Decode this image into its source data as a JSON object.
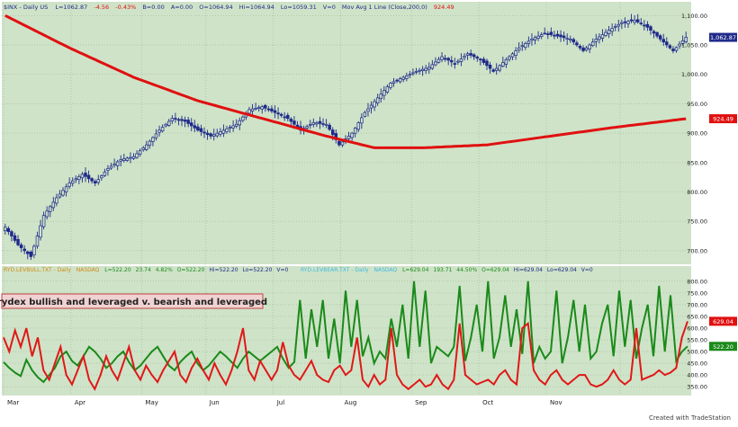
{
  "top_panel": {
    "header": {
      "symbol": "$INX - Daily US",
      "last": "L=1062.87",
      "change": "-4.56",
      "pct": "-0.43%",
      "b": "B=0.00",
      "a": "A=0.00",
      "open": "O=1064.94",
      "high": "Hi=1064.94",
      "low": "Lo=1059.31",
      "vol": "V=0",
      "ma_label": "Mov Avg 1 Line (Close,200,0)",
      "ma_value": "924.49"
    },
    "price_badge": "1,062.87",
    "ma_badge": "924.49"
  },
  "bottom_panel": {
    "header": {
      "bull_symbol": "RYD.LEVBULL.TXT - Daily",
      "bull_exchange": "NASDAQ",
      "bull_last": "L=522.20",
      "bull_change": "23.74",
      "bull_pct": "4.82%",
      "bull_open": "O=522.20",
      "bull_high": "Hi=522.20",
      "bull_low": "Lo=522.20",
      "bull_vol": "V=0",
      "bear_symbol": "RYD.LEVBEAR.TXT - Daily",
      "bear_exchange": "NASDAQ",
      "bear_last": "L=629.04",
      "bear_change": "193.71",
      "bear_pct": "44.50%",
      "bear_open": "O=629.04",
      "bear_high": "Hi=629.04",
      "bear_low": "Lo=629.04",
      "bear_vol": "V=0"
    },
    "note": "rydex bullish and leveraged v. bearish and leveraged",
    "bear_badge": "629.04",
    "bull_badge": "522.20"
  },
  "footer": "Created with TradeStation",
  "colors": {
    "background": "#cfe3c8",
    "candle": "#1f2a8a",
    "ma": "#e01010",
    "bull_line": "#1a8a1a",
    "bear_line": "#e01818",
    "price_badge": "#1f2a8a",
    "ma_badge": "#e01010"
  },
  "chart_data": [
    {
      "type": "candlestick",
      "title": "$INX - Daily",
      "x_tick_labels": [
        "Mar",
        "Apr",
        "May",
        "Jun",
        "Jul",
        "Aug",
        "Sep",
        "Oct",
        "Nov"
      ],
      "y_tick_labels": [
        "700.00",
        "750.00",
        "800.00",
        "850.00",
        "900.00",
        "950.00",
        "1,000.00",
        "1,050.00",
        "1,100.00"
      ],
      "ylim": [
        680,
        1105
      ],
      "grid": true,
      "close_keypoints": [
        {
          "day": 0,
          "close": 740
        },
        {
          "day": 4,
          "close": 710
        },
        {
          "day": 8,
          "close": 690
        },
        {
          "day": 12,
          "close": 760
        },
        {
          "day": 16,
          "close": 790
        },
        {
          "day": 20,
          "close": 815
        },
        {
          "day": 24,
          "close": 830
        },
        {
          "day": 28,
          "close": 815
        },
        {
          "day": 32,
          "close": 840
        },
        {
          "day": 36,
          "close": 855
        },
        {
          "day": 40,
          "close": 860
        },
        {
          "day": 44,
          "close": 880
        },
        {
          "day": 48,
          "close": 905
        },
        {
          "day": 52,
          "close": 925
        },
        {
          "day": 56,
          "close": 920
        },
        {
          "day": 60,
          "close": 905
        },
        {
          "day": 64,
          "close": 895
        },
        {
          "day": 68,
          "close": 905
        },
        {
          "day": 72,
          "close": 915
        },
        {
          "day": 76,
          "close": 940
        },
        {
          "day": 80,
          "close": 945
        },
        {
          "day": 84,
          "close": 935
        },
        {
          "day": 88,
          "close": 925
        },
        {
          "day": 92,
          "close": 905
        },
        {
          "day": 96,
          "close": 918
        },
        {
          "day": 100,
          "close": 915
        },
        {
          "day": 104,
          "close": 880
        },
        {
          "day": 108,
          "close": 900
        },
        {
          "day": 112,
          "close": 935
        },
        {
          "day": 116,
          "close": 960
        },
        {
          "day": 120,
          "close": 985
        },
        {
          "day": 124,
          "close": 995
        },
        {
          "day": 128,
          "close": 1005
        },
        {
          "day": 132,
          "close": 1012
        },
        {
          "day": 136,
          "close": 1030
        },
        {
          "day": 140,
          "close": 1018
        },
        {
          "day": 144,
          "close": 1035
        },
        {
          "day": 148,
          "close": 1025
        },
        {
          "day": 152,
          "close": 1005
        },
        {
          "day": 156,
          "close": 1025
        },
        {
          "day": 160,
          "close": 1045
        },
        {
          "day": 164,
          "close": 1060
        },
        {
          "day": 168,
          "close": 1070
        },
        {
          "day": 172,
          "close": 1065
        },
        {
          "day": 176,
          "close": 1060
        },
        {
          "day": 180,
          "close": 1040
        },
        {
          "day": 184,
          "close": 1060
        },
        {
          "day": 188,
          "close": 1075
        },
        {
          "day": 192,
          "close": 1088
        },
        {
          "day": 196,
          "close": 1092
        },
        {
          "day": 200,
          "close": 1080
        },
        {
          "day": 204,
          "close": 1060
        },
        {
          "day": 208,
          "close": 1040
        },
        {
          "day": 212,
          "close": 1062.87
        }
      ],
      "ma_series": {
        "name": "Mov Avg 1 Line (Close,200,0)",
        "keypoints": [
          {
            "day": 0,
            "value": 1100
          },
          {
            "day": 20,
            "value": 1045
          },
          {
            "day": 40,
            "value": 995
          },
          {
            "day": 60,
            "value": 955
          },
          {
            "day": 80,
            "value": 925
          },
          {
            "day": 100,
            "value": 895
          },
          {
            "day": 115,
            "value": 875
          },
          {
            "day": 130,
            "value": 875
          },
          {
            "day": 150,
            "value": 880
          },
          {
            "day": 170,
            "value": 895
          },
          {
            "day": 190,
            "value": 910
          },
          {
            "day": 212,
            "value": 924.49
          }
        ]
      }
    },
    {
      "type": "line",
      "title": "rydex bullish and leveraged v. bearish and leveraged",
      "x_tick_labels": [
        "Mar",
        "Apr",
        "May",
        "Jun",
        "Jul",
        "Aug",
        "Sep",
        "Oct",
        "Nov"
      ],
      "y_tick_labels": [
        "350.00",
        "400.00",
        "450.00",
        "500.00",
        "550.00",
        "600.00",
        "650.00",
        "700.00",
        "750.00",
        "800.00"
      ],
      "ylim": [
        320,
        830
      ],
      "grid": true,
      "series": [
        {
          "name": "RYD.LEVBULL.TXT",
          "values": [
            455,
            430,
            410,
            395,
            465,
            420,
            390,
            370,
            400,
            430,
            480,
            500,
            460,
            440,
            480,
            520,
            500,
            470,
            430,
            450,
            480,
            500,
            455,
            420,
            440,
            470,
            500,
            520,
            480,
            440,
            420,
            455,
            480,
            500,
            450,
            420,
            440,
            470,
            500,
            480,
            455,
            430,
            470,
            500,
            480,
            460,
            480,
            500,
            520,
            470,
            430,
            455,
            720,
            470,
            680,
            520,
            720,
            470,
            640,
            450,
            760,
            520,
            720,
            480,
            560,
            450,
            500,
            470,
            640,
            520,
            700,
            470,
            800,
            520,
            760,
            450,
            520,
            500,
            480,
            520,
            780,
            460,
            560,
            700,
            500,
            800,
            470,
            560,
            740,
            520,
            680,
            490,
            800,
            450,
            520,
            470,
            500,
            760,
            450,
            560,
            720,
            500,
            700,
            470,
            500,
            620,
            700,
            480,
            760,
            520,
            720,
            470,
            600,
            700,
            480,
            780,
            500,
            740,
            460,
            500,
            522.2
          ]
        },
        {
          "name": "RYD.LEVBEAR.TXT",
          "values": [
            560,
            500,
            590,
            520,
            600,
            480,
            560,
            420,
            380,
            450,
            520,
            400,
            360,
            420,
            480,
            380,
            340,
            400,
            480,
            420,
            380,
            450,
            520,
            420,
            380,
            440,
            400,
            370,
            420,
            460,
            500,
            400,
            370,
            430,
            470,
            420,
            380,
            450,
            400,
            360,
            420,
            500,
            600,
            420,
            380,
            460,
            420,
            380,
            420,
            540,
            440,
            400,
            380,
            420,
            460,
            400,
            380,
            370,
            420,
            440,
            400,
            420,
            560,
            380,
            350,
            400,
            360,
            380,
            600,
            400,
            360,
            340,
            360,
            380,
            350,
            360,
            400,
            360,
            340,
            380,
            620,
            400,
            380,
            360,
            370,
            380,
            360,
            400,
            420,
            380,
            360,
            600,
            620,
            420,
            380,
            360,
            400,
            420,
            380,
            360,
            380,
            400,
            400,
            360,
            350,
            360,
            380,
            420,
            380,
            360,
            380,
            600,
            380,
            390,
            400,
            420,
            400,
            410,
            430,
            560,
            629.04
          ]
        }
      ]
    }
  ]
}
